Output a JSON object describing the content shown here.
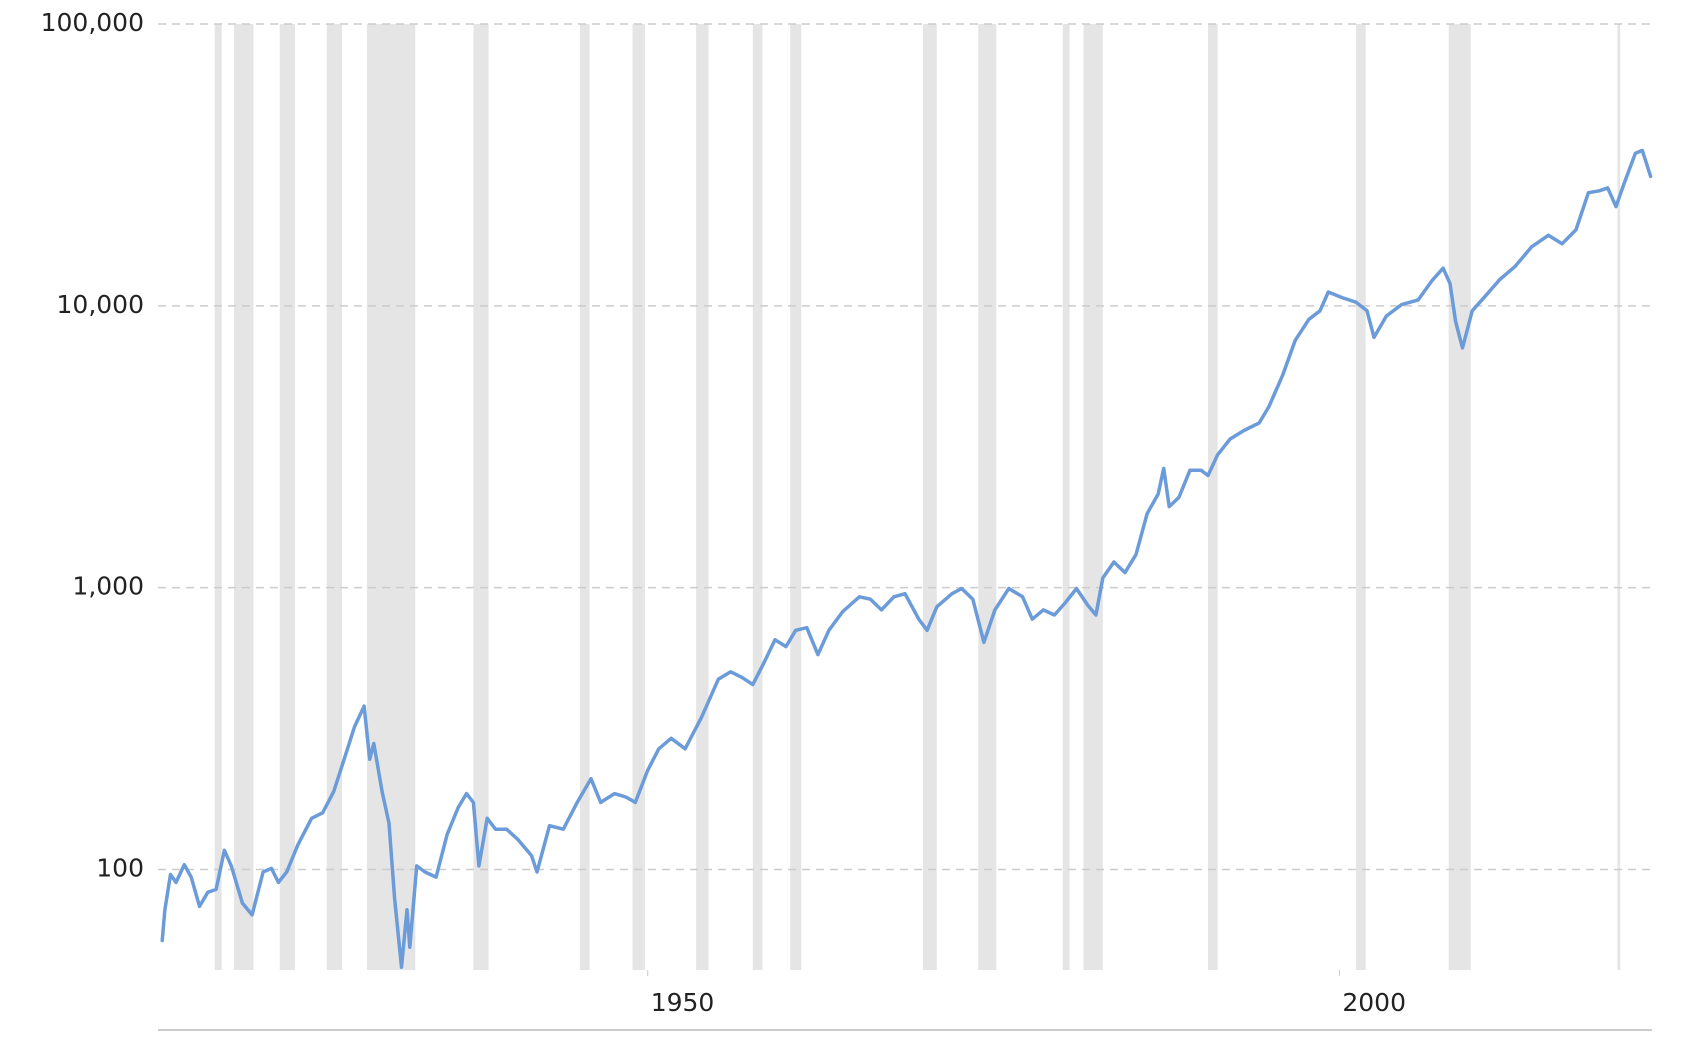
{
  "chart_data": {
    "type": "line",
    "log_y": true,
    "grid": true,
    "ylim": [
      44,
      100000
    ],
    "yticks": [
      {
        "value": 100000,
        "label": "100,000"
      },
      {
        "value": 10000,
        "label": "10,000"
      },
      {
        "value": 1000,
        "label": "1,000"
      },
      100
    ],
    "xlim": [
      1914.6,
      2022.6
    ],
    "xticks": [
      1950,
      2000
    ],
    "recession_color": "#e5e5e5",
    "recessions": [
      [
        1918.7,
        1919.2
      ],
      [
        1920.1,
        1921.5
      ],
      [
        1923.4,
        1924.5
      ],
      [
        1926.8,
        1927.9
      ],
      [
        1929.7,
        1933.2
      ],
      [
        1937.4,
        1938.5
      ],
      [
        1945.1,
        1945.8
      ],
      [
        1948.9,
        1949.8
      ],
      [
        1953.5,
        1954.4
      ],
      [
        1957.6,
        1958.3
      ],
      [
        1960.3,
        1961.1
      ],
      [
        1969.9,
        1970.9
      ],
      [
        1973.9,
        1975.2
      ],
      [
        1980.0,
        1980.5
      ],
      [
        1981.5,
        1982.9
      ],
      [
        1990.5,
        1991.2
      ],
      [
        2001.2,
        2001.9
      ],
      [
        2007.9,
        2009.5
      ],
      [
        2020.1,
        2020.3
      ]
    ],
    "x": [
      1914.9,
      1915.1,
      1915.5,
      1915.9,
      1916.5,
      1917,
      1917.6,
      1918.2,
      1918.8,
      1919.4,
      1919.9,
      1920.7,
      1921.4,
      1922.2,
      1922.8,
      1923.3,
      1923.9,
      1924.7,
      1925.7,
      1926.5,
      1927.3,
      1928.3,
      1928.8,
      1929.5,
      1929.9,
      1930.2,
      1930.8,
      1931.3,
      1931.7,
      1932.2,
      1932.6,
      1932.8,
      1933.3,
      1933.9,
      1934.7,
      1935.5,
      1936.3,
      1936.9,
      1937.4,
      1937.8,
      1938.4,
      1939,
      1939.8,
      1940.6,
      1941.6,
      1942,
      1942.9,
      1943.9,
      1944.9,
      1945.9,
      1946.6,
      1947.6,
      1948.4,
      1949.1,
      1950,
      1950.8,
      1951.7,
      1952.7,
      1953.9,
      1955.1,
      1956,
      1956.8,
      1957.6,
      1958.4,
      1959.2,
      1960,
      1960.7,
      1961.5,
      1962.3,
      1963.1,
      1964.1,
      1965.3,
      1966.1,
      1966.9,
      1967.8,
      1968.6,
      1969.6,
      1970.2,
      1970.9,
      1972,
      1972.7,
      1973.5,
      1974.3,
      1975.1,
      1976.1,
      1977.1,
      1977.8,
      1978.6,
      1979.4,
      1980.2,
      1981,
      1981.8,
      1982.4,
      1982.9,
      1983.7,
      1984.5,
      1985.3,
      1986.1,
      1986.9,
      1987.3,
      1987.7,
      1988.4,
      1989.2,
      1990,
      1990.5,
      1991.2,
      1992.1,
      1993.1,
      1994.2,
      1994.9,
      1995.9,
      1996.8,
      1997.8,
      1998.6,
      1999.2,
      2000.2,
      2001.2,
      2002,
      2002.5,
      2003.4,
      2004.5,
      2005.7,
      2006.7,
      2007.5,
      2008,
      2008.4,
      2008.9,
      2009.6,
      2010.6,
      2011.6,
      2012.7,
      2013.9,
      2015.1,
      2016.1,
      2017.1,
      2018,
      2018.8,
      2019.4,
      2020,
      2020.6,
      2021.4,
      2021.9,
      2022.5
    ],
    "series": [
      {
        "color": "#6b9bd8",
        "values": [
          56,
          72,
          96,
          90,
          104,
          94,
          74,
          83,
          85,
          117,
          103,
          76,
          69,
          98,
          101,
          90,
          98,
          122,
          152,
          159,
          189,
          268,
          320,
          380,
          246,
          280,
          189,
          146,
          79,
          45,
          72,
          53,
          103,
          98,
          94,
          133,
          166,
          186,
          173,
          103,
          152,
          139,
          139,
          128,
          112,
          98,
          143,
          139,
          173,
          210,
          173,
          186,
          181,
          173,
          225,
          268,
          292,
          268,
          348,
          473,
          503,
          481,
          453,
          541,
          654,
          618,
          706,
          721,
          579,
          706,
          823,
          928,
          910,
          834,
          928,
          952,
          773,
          706,
          855,
          952,
          993,
          910,
          640,
          834,
          993,
          928,
          773,
          834,
          800,
          886,
          993,
          868,
          800,
          1082,
          1233,
          1131,
          1310,
          1830,
          2150,
          2650,
          1940,
          2090,
          2610,
          2610,
          2500,
          2960,
          3370,
          3610,
          3840,
          4380,
          5680,
          7530,
          8960,
          9600,
          11200,
          10700,
          10300,
          9600,
          7730,
          9200,
          10100,
          10500,
          12300,
          13600,
          12000,
          8800,
          7090,
          9600,
          10900,
          12400,
          13800,
          16200,
          17800,
          16600,
          18600,
          25200,
          25600,
          26200,
          22500,
          27300,
          34800,
          35600,
          28800
        ]
      }
    ]
  }
}
